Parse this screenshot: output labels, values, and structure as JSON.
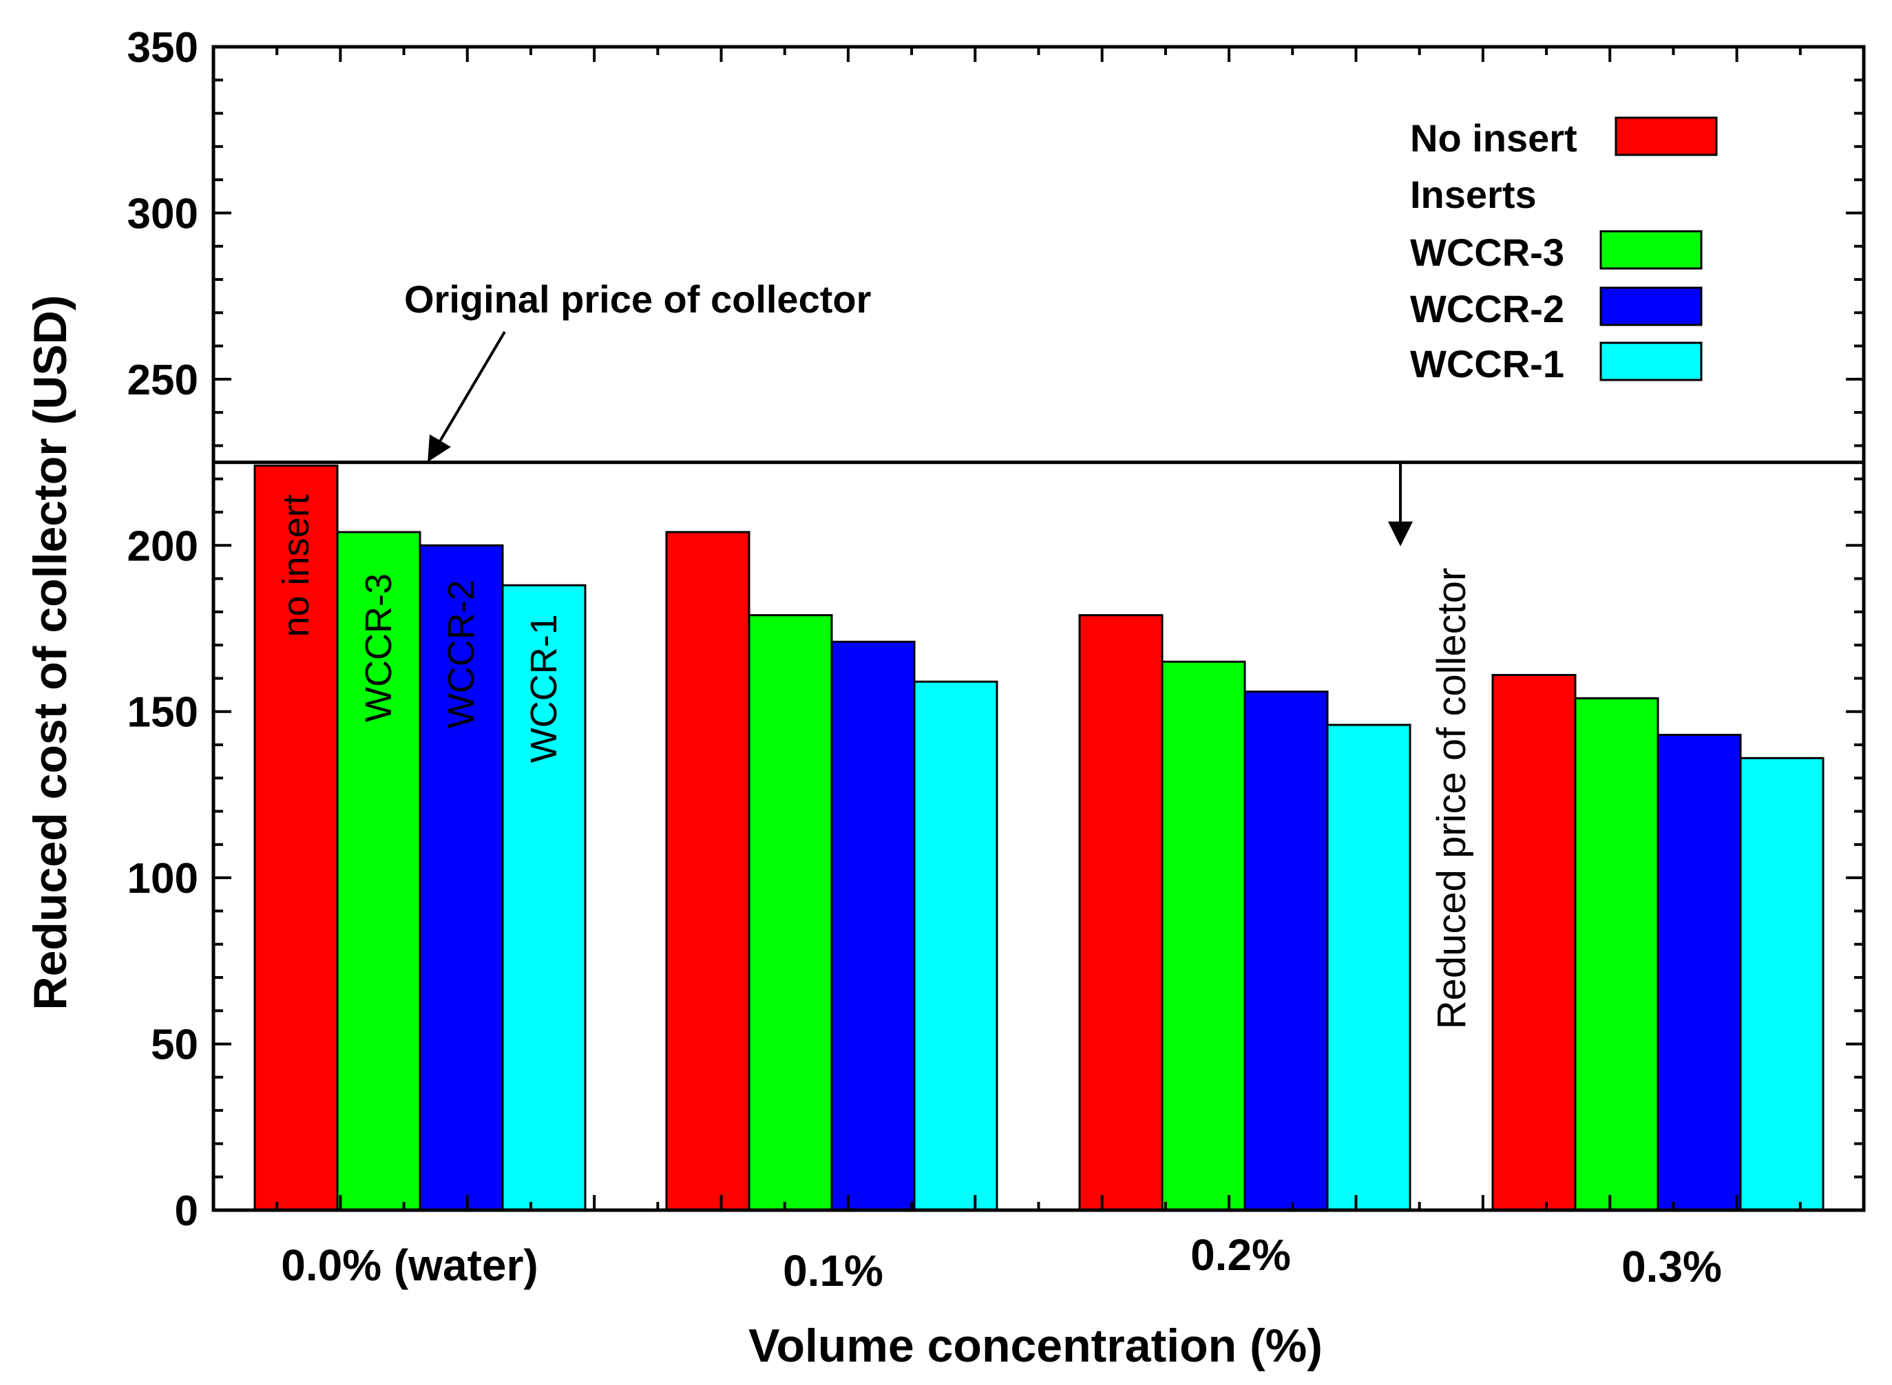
{
  "chart_data": {
    "type": "bar",
    "title": "",
    "xlabel": "Volume concentration (%)",
    "ylabel": "Reduced cost of collector (USD)",
    "ylim": [
      0,
      350
    ],
    "yticks": [
      0,
      50,
      100,
      150,
      200,
      250,
      300,
      350
    ],
    "categories": [
      "0.0% (water)",
      "0.1%",
      "0.2%",
      "0.3%"
    ],
    "series": [
      {
        "name": "No insert",
        "color": "#ff0000",
        "values": [
          224,
          204,
          179,
          161
        ]
      },
      {
        "name": "WCCR-3",
        "color": "#00ff00",
        "values": [
          204,
          179,
          165,
          154
        ]
      },
      {
        "name": "WCCR-2",
        "color": "#0000ff",
        "values": [
          200,
          171,
          156,
          143
        ]
      },
      {
        "name": "WCCR-1",
        "color": "#00ffff",
        "values": [
          188,
          159,
          146,
          136
        ]
      }
    ],
    "bar_labels": [
      "no insert",
      "WCCR-3",
      "WCCR-2",
      "WCCR-1"
    ],
    "reference_line": {
      "value": 225,
      "label": "Original price of collector"
    },
    "annotation_reduced": "Reduced price of collector",
    "legend": {
      "position": "top-right",
      "entries": [
        {
          "label": "No insert",
          "color": "#ff0000"
        },
        {
          "label": "WCCR-3",
          "color": "#00ff00"
        },
        {
          "label": "WCCR-2",
          "color": "#0000ff"
        },
        {
          "label": "WCCR-1",
          "color": "#00ffff"
        }
      ],
      "group_heading": "Inserts"
    },
    "grid": false
  }
}
